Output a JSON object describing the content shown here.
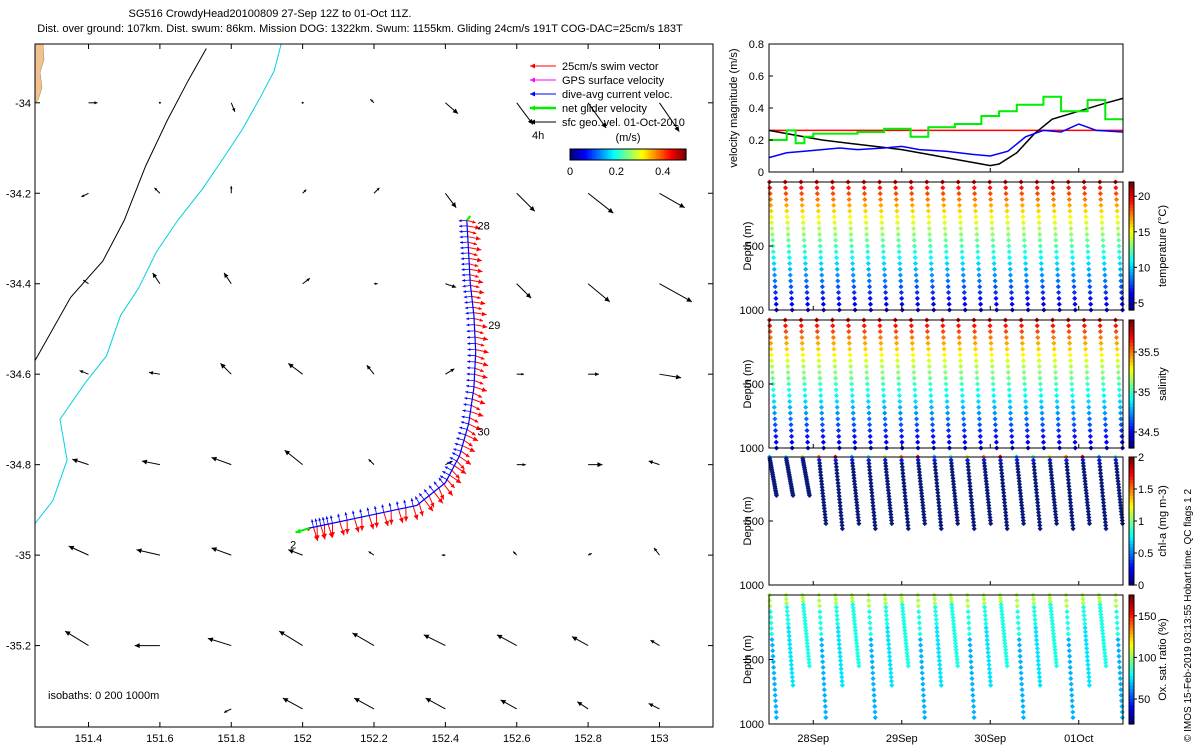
{
  "header": {
    "title_line1": "SG516 CrowdyHead20100809 27-Sep 12Z to 01-Oct 11Z.",
    "title_line2": "Dist. over ground: 107km. Dist. swum: 86km. Mission DOG: 1322km. Swum: 1155km. Gliding 24cm/s 191T COG-DAC=25cm/s 183T"
  },
  "credit": "© IMOS 15-Feb-2019 03:13:55 Hobart time. QC flags 1  2",
  "colors": {
    "swim": "#ff0000",
    "gps": "#ff00ff",
    "dac": "#0000ff",
    "net": "#00ee00",
    "geo": "#000000",
    "coast": "#00d0e0",
    "isobath": "#000000"
  },
  "chart_data": [
    {
      "type": "map",
      "xlim": [
        151.25,
        153.15
      ],
      "ylim": [
        -35.38,
        -33.87
      ],
      "xticks": [
        "151.4",
        "151.6",
        "151.8",
        "152",
        "152.2",
        "152.4",
        "152.6",
        "152.8",
        "153"
      ],
      "xtick_values": [
        151.4,
        151.6,
        151.8,
        152,
        152.2,
        152.4,
        152.6,
        152.8,
        153
      ],
      "yticks": [
        "-34",
        "-34.2",
        "-34.4",
        "-34.6",
        "-34.8",
        "-35",
        "-35.2"
      ],
      "ytick_values": [
        -34,
        -34.2,
        -34.4,
        -34.6,
        -34.8,
        -35,
        -35.2
      ],
      "legend": [
        {
          "label": "25cm/s swim vector",
          "color": "#ff0000"
        },
        {
          "label": "GPS surface velocity",
          "color": "#ff00ff"
        },
        {
          "label": "dive-avg current veloc.",
          "color": "#0000ff"
        },
        {
          "label": "net glider velocity",
          "color": "#00ee00"
        },
        {
          "label": "sfc geo. vel. 01-Oct-2010",
          "color": "#000000"
        }
      ],
      "legend_extra": "4h",
      "colorbar": {
        "title": "(m/s)",
        "ticks": [
          "0",
          "0.2",
          "0.4"
        ],
        "tick_values": [
          0,
          0.2,
          0.4
        ],
        "range": [
          0,
          0.5
        ]
      },
      "isobaths_label": "isobaths: 0   200  1000m",
      "day_labels": [
        {
          "label": "28",
          "lon": 152.49,
          "lat": -34.28
        },
        {
          "label": "29",
          "lon": 152.52,
          "lat": -34.5
        },
        {
          "label": "30",
          "lon": 152.49,
          "lat": -34.735
        },
        {
          "label": "2",
          "lon": 151.965,
          "lat": -34.985
        }
      ],
      "track": [
        [
          152.46,
          -34.26
        ],
        [
          152.465,
          -34.33
        ],
        [
          152.47,
          -34.4
        ],
        [
          152.48,
          -34.47
        ],
        [
          152.485,
          -34.55
        ],
        [
          152.48,
          -34.63
        ],
        [
          152.465,
          -34.71
        ],
        [
          152.44,
          -34.78
        ],
        [
          152.4,
          -34.84
        ],
        [
          152.32,
          -34.89
        ],
        [
          152.2,
          -34.91
        ],
        [
          152.08,
          -34.93
        ],
        [
          152.02,
          -34.94
        ]
      ],
      "geo_vectors": [
        [
          151.4,
          -34,
          0.5,
          0
        ],
        [
          151.6,
          -34,
          0,
          0
        ],
        [
          151.8,
          -34,
          0.2,
          -0.5
        ],
        [
          152.0,
          -34,
          0,
          0
        ],
        [
          152.2,
          -34,
          -0.2,
          0.2
        ],
        [
          152.4,
          -34,
          0.7,
          -0.6
        ],
        [
          152.6,
          -34,
          0.9,
          -1.2
        ],
        [
          152.8,
          -34,
          1.0,
          -1.4
        ],
        [
          153.0,
          -34,
          1.1,
          -1.6
        ],
        [
          151.4,
          -34.2,
          -0.4,
          -0.2
        ],
        [
          151.6,
          -34.2,
          -0.3,
          0.3
        ],
        [
          151.8,
          -34.2,
          0,
          0.4
        ],
        [
          152.0,
          -34.2,
          0.2,
          0.2
        ],
        [
          152.2,
          -34.2,
          0.3,
          0.3
        ],
        [
          152.4,
          -34.2,
          0.6,
          -0.8
        ],
        [
          152.6,
          -34.2,
          1.0,
          -1.0
        ],
        [
          152.8,
          -34.2,
          1.4,
          -1.1
        ],
        [
          153.0,
          -34.2,
          1.4,
          -0.8
        ],
        [
          151.4,
          -34.4,
          -0.3,
          0.2
        ],
        [
          151.6,
          -34.4,
          -0.4,
          0.6
        ],
        [
          151.8,
          -34.4,
          -0.4,
          0.6
        ],
        [
          152.0,
          -34.4,
          0.4,
          0.3
        ],
        [
          152.2,
          -34.4,
          0.2,
          0
        ],
        [
          152.4,
          -34.4,
          0.6,
          -0.2
        ],
        [
          152.6,
          -34.4,
          0.8,
          -0.8
        ],
        [
          152.8,
          -34.4,
          1.2,
          -1.0
        ],
        [
          153.0,
          -34.4,
          1.8,
          -1.0
        ],
        [
          151.4,
          -34.6,
          -0.5,
          0.2
        ],
        [
          151.6,
          -34.6,
          -0.6,
          0.1
        ],
        [
          151.8,
          -34.6,
          -0.6,
          0.6
        ],
        [
          152.0,
          -34.6,
          -0.8,
          0.6
        ],
        [
          152.2,
          -34.6,
          -0.4,
          0.5
        ],
        [
          152.4,
          -34.6,
          0.5,
          0.3
        ],
        [
          152.6,
          -34.6,
          0.4,
          0
        ],
        [
          152.8,
          -34.6,
          0.6,
          0
        ],
        [
          153.0,
          -34.6,
          1.2,
          -0.2
        ],
        [
          151.4,
          -34.8,
          -0.9,
          0.3
        ],
        [
          151.6,
          -34.8,
          -1.0,
          0.2
        ],
        [
          151.8,
          -34.8,
          -1.1,
          0.4
        ],
        [
          152.0,
          -34.8,
          -1.0,
          0.8
        ],
        [
          152.2,
          -34.8,
          -0.3,
          0.3
        ],
        [
          152.4,
          -34.8,
          0.4,
          0.2
        ],
        [
          152.6,
          -34.8,
          0.5,
          0
        ],
        [
          152.8,
          -34.8,
          0.8,
          0
        ],
        [
          153.0,
          -34.8,
          -0.6,
          0.2
        ],
        [
          151.4,
          -35,
          -1.1,
          0.5
        ],
        [
          151.6,
          -35,
          -1.3,
          0.3
        ],
        [
          151.8,
          -35,
          -1.1,
          0.4
        ],
        [
          152.0,
          -35,
          -0.8,
          0.3
        ],
        [
          152.2,
          -35,
          -0.3,
          0.2
        ],
        [
          152.4,
          -35,
          -0.2,
          0
        ],
        [
          152.6,
          -35,
          -0.2,
          0.2
        ],
        [
          152.8,
          -35,
          0.2,
          0.1
        ],
        [
          153.0,
          -35,
          -0.3,
          0.4
        ],
        [
          151.4,
          -35.2,
          -1.3,
          0.8
        ],
        [
          151.6,
          -35.2,
          -1.4,
          0
        ],
        [
          151.8,
          -35.2,
          -1.3,
          0.4
        ],
        [
          152.0,
          -35.2,
          -1.3,
          0.8
        ],
        [
          152.2,
          -35.2,
          -1.2,
          0.7
        ],
        [
          152.4,
          -35.2,
          -1.2,
          0.6
        ],
        [
          152.6,
          -35.2,
          -1.1,
          0.6
        ],
        [
          152.8,
          -35.2,
          -0.9,
          0.5
        ],
        [
          153.0,
          -35.2,
          -0.5,
          0.3
        ],
        [
          151.8,
          -35.34,
          -0.4,
          -0.2
        ],
        [
          152.0,
          -35.34,
          -1.1,
          0.6
        ],
        [
          152.2,
          -35.34,
          -1.1,
          0.6
        ],
        [
          152.4,
          -35.34,
          -1.1,
          0.6
        ],
        [
          152.6,
          -35.34,
          -0.9,
          0.5
        ],
        [
          152.8,
          -35.34,
          -0.6,
          0.4
        ],
        [
          153.0,
          -35.34,
          -0.6,
          0.3
        ]
      ],
      "isobath_1000m": [
        [
          151.25,
          -34.57
        ],
        [
          151.35,
          -34.43
        ],
        [
          151.44,
          -34.35
        ],
        [
          151.5,
          -34.26
        ],
        [
          151.56,
          -34.14
        ],
        [
          151.62,
          -34.04
        ],
        [
          151.68,
          -33.95
        ],
        [
          151.73,
          -33.88
        ]
      ],
      "coast_200m": [
        [
          151.25,
          -34.93
        ],
        [
          151.3,
          -34.88
        ],
        [
          151.34,
          -34.79
        ],
        [
          151.32,
          -34.7
        ],
        [
          151.39,
          -34.62
        ],
        [
          151.45,
          -34.56
        ],
        [
          151.49,
          -34.47
        ],
        [
          151.54,
          -34.41
        ],
        [
          151.59,
          -34.33
        ],
        [
          151.65,
          -34.26
        ],
        [
          151.72,
          -34.19
        ],
        [
          151.78,
          -34.12
        ],
        [
          151.83,
          -34.06
        ],
        [
          151.88,
          -33.99
        ],
        [
          151.92,
          -33.93
        ],
        [
          151.94,
          -33.87
        ]
      ]
    },
    {
      "type": "line",
      "ylabel": "velocity magnitude (m/s)",
      "ylim": [
        0,
        0.8
      ],
      "yticks": [
        "0",
        "0.2",
        "0.4",
        "0.6",
        "0.8"
      ],
      "ytick_values": [
        0,
        0.2,
        0.4,
        0.6,
        0.8
      ],
      "xlim": [
        27.5,
        31.5
      ],
      "series": [
        {
          "color": "#ff0000",
          "x": [
            27.5,
            31.5
          ],
          "y": [
            0.26,
            0.26
          ]
        },
        {
          "color": "#000000",
          "x": [
            27.5,
            27.8,
            28.1,
            28.4,
            28.7,
            29.0,
            29.3,
            29.6,
            29.9,
            30.0,
            30.1,
            30.3,
            30.5,
            30.7,
            31.0,
            31.3,
            31.5
          ],
          "y": [
            0.26,
            0.23,
            0.2,
            0.18,
            0.16,
            0.14,
            0.11,
            0.08,
            0.05,
            0.04,
            0.05,
            0.12,
            0.24,
            0.33,
            0.38,
            0.43,
            0.46
          ]
        },
        {
          "color": "#0000ff",
          "x": [
            27.5,
            27.7,
            27.9,
            28.1,
            28.3,
            28.5,
            28.8,
            29.0,
            29.2,
            29.5,
            29.8,
            30.0,
            30.2,
            30.4,
            30.6,
            30.8,
            31.0,
            31.2,
            31.5
          ],
          "y": [
            0.09,
            0.12,
            0.13,
            0.14,
            0.15,
            0.14,
            0.15,
            0.16,
            0.14,
            0.13,
            0.11,
            0.1,
            0.13,
            0.22,
            0.26,
            0.25,
            0.3,
            0.26,
            0.25
          ]
        },
        {
          "color": "#00ee00",
          "step": true,
          "x": [
            27.5,
            27.7,
            27.8,
            27.9,
            28.0,
            28.4,
            28.5,
            28.8,
            29.1,
            29.3,
            29.6,
            29.9,
            30.1,
            30.3,
            30.6,
            30.8,
            31.1,
            31.3,
            31.5
          ],
          "y": [
            0.2,
            0.26,
            0.18,
            0.22,
            0.24,
            0.24,
            0.25,
            0.27,
            0.22,
            0.28,
            0.3,
            0.35,
            0.38,
            0.42,
            0.47,
            0.38,
            0.45,
            0.33,
            0.33
          ]
        }
      ]
    },
    {
      "type": "scatter",
      "ylabel": "Depth (m)",
      "clabel": "temperature (°C)",
      "ylim": [
        0,
        1000
      ],
      "yticks": [
        "500",
        "1000"
      ],
      "ytick_values": [
        500,
        1000
      ],
      "cticks": [
        "5",
        "10",
        "15",
        "20"
      ],
      "ctick_values": [
        5,
        10,
        15,
        20
      ],
      "crange": [
        4,
        22
      ],
      "dives": 23,
      "max_depth": 1000,
      "surface_value": 22,
      "bottom_value": 4
    },
    {
      "type": "scatter",
      "ylabel": "Depth (m)",
      "clabel": "salinity",
      "ylim": [
        0,
        1000
      ],
      "yticks": [
        "500",
        "1000"
      ],
      "ytick_values": [
        500,
        1000
      ],
      "cticks": [
        "34.5",
        "35",
        "35.5"
      ],
      "ctick_values": [
        34.5,
        35,
        35.5
      ],
      "crange": [
        34.3,
        35.9
      ],
      "dives": 23,
      "max_depth": 1000,
      "surface_value": 35.8,
      "bottom_value": 34.35
    },
    {
      "type": "scatter",
      "ylabel": "Depth (m)",
      "clabel": "chl-a (mg m-3)",
      "ylim": [
        0,
        1000
      ],
      "yticks": [
        "500",
        "1000"
      ],
      "ytick_values": [
        500,
        1000
      ],
      "cticks": [
        "0",
        "0.5",
        "1",
        "1.5",
        "2"
      ],
      "ctick_values": [
        0,
        0.5,
        1,
        1.5,
        2
      ],
      "crange": [
        0,
        2
      ],
      "dives": 22,
      "max_depth": 550
    },
    {
      "type": "scatter",
      "ylabel": "Depth (m)",
      "clabel": "Ox. sat. ratio (%)",
      "ylim": [
        0,
        1000
      ],
      "yticks": [
        "500",
        "1000"
      ],
      "ytick_values": [
        500,
        1000
      ],
      "cticks": [
        "50",
        "100",
        "150"
      ],
      "ctick_values": [
        50,
        100,
        150
      ],
      "crange": [
        20,
        175
      ],
      "xticks": [
        "28Sep",
        "29Sep",
        "30Sep",
        "01Oct"
      ],
      "xtick_values": [
        28,
        29,
        30,
        31
      ],
      "xlim": [
        27.5,
        31.5
      ],
      "dives": 22,
      "max_depth": 950
    }
  ]
}
